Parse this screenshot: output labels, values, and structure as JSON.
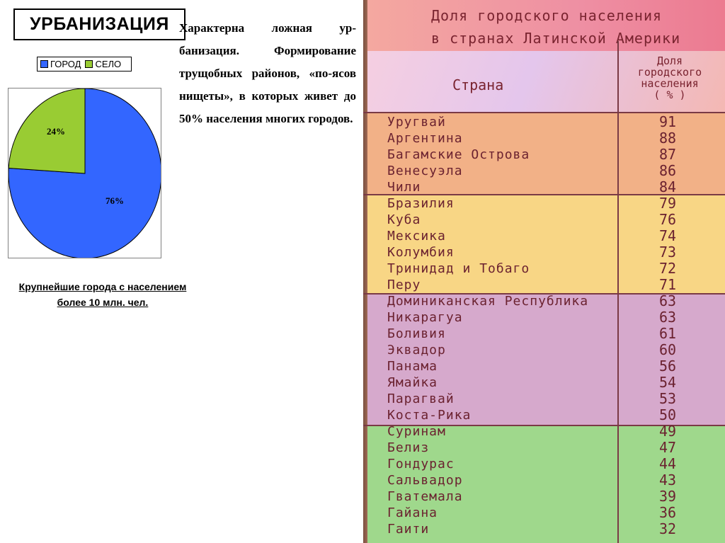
{
  "slide": {
    "title": "УРБАНИЗАЦИЯ",
    "description": "Характерна ложная ур-банизация. Формирование трущобных районов, «по-ясов нищеты», в которых живет до 50% населения многих городов.",
    "caption_line1": "Крупнейшие города с населением",
    "caption_line2": "более 10 млн. чел."
  },
  "legend": {
    "city": "ГОРОД",
    "village": "СЕЛО"
  },
  "chart_data": {
    "type": "pie",
    "labels": [
      "ГОРОД",
      "СЕЛО"
    ],
    "values": [
      76,
      24
    ],
    "value_labels": [
      "76%",
      "24%"
    ],
    "colors": [
      "#3366ff",
      "#99cc33"
    ]
  },
  "table": {
    "title_line1": "Доля городского населения",
    "title_line2": "в странах Латинской Америки",
    "col_country": "Страна",
    "col_share_line1": "Доля",
    "col_share_line2": "городского",
    "col_share_line3": "населения",
    "col_share_line4": "( % )",
    "rows": [
      {
        "country": "Уругвай",
        "value": "91"
      },
      {
        "country": "Аргентина",
        "value": "88"
      },
      {
        "country": "Багамские Острова",
        "value": "87"
      },
      {
        "country": "Венесуэла",
        "value": "86"
      },
      {
        "country": "Чили",
        "value": "84"
      },
      {
        "country": "Бразилия",
        "value": "79"
      },
      {
        "country": "Куба",
        "value": "76"
      },
      {
        "country": "Мексика",
        "value": "74"
      },
      {
        "country": "Колумбия",
        "value": "73"
      },
      {
        "country": "Тринидад и Тобаго",
        "value": "72"
      },
      {
        "country": "Перу",
        "value": "71"
      },
      {
        "country": "Доминиканская Республика",
        "value": "63"
      },
      {
        "country": "Никарагуа",
        "value": "63"
      },
      {
        "country": "Боливия",
        "value": "61"
      },
      {
        "country": "Эквадор",
        "value": "60"
      },
      {
        "country": "Панама",
        "value": "56"
      },
      {
        "country": "Ямайка",
        "value": "54"
      },
      {
        "country": "Парагвай",
        "value": "53"
      },
      {
        "country": "Коста-Рика",
        "value": "50"
      },
      {
        "country": "Суринам",
        "value": "49"
      },
      {
        "country": "Белиз",
        "value": "47"
      },
      {
        "country": "Гондурас",
        "value": "44"
      },
      {
        "country": "Сальвадор",
        "value": "43"
      },
      {
        "country": "Гватемала",
        "value": "39"
      },
      {
        "country": "Гайана",
        "value": "36"
      },
      {
        "country": "Гаити",
        "value": "32"
      }
    ],
    "group_colors": [
      "#f2b187",
      "#f8d685",
      "#d6a9cc",
      "#9fd88c"
    ]
  }
}
